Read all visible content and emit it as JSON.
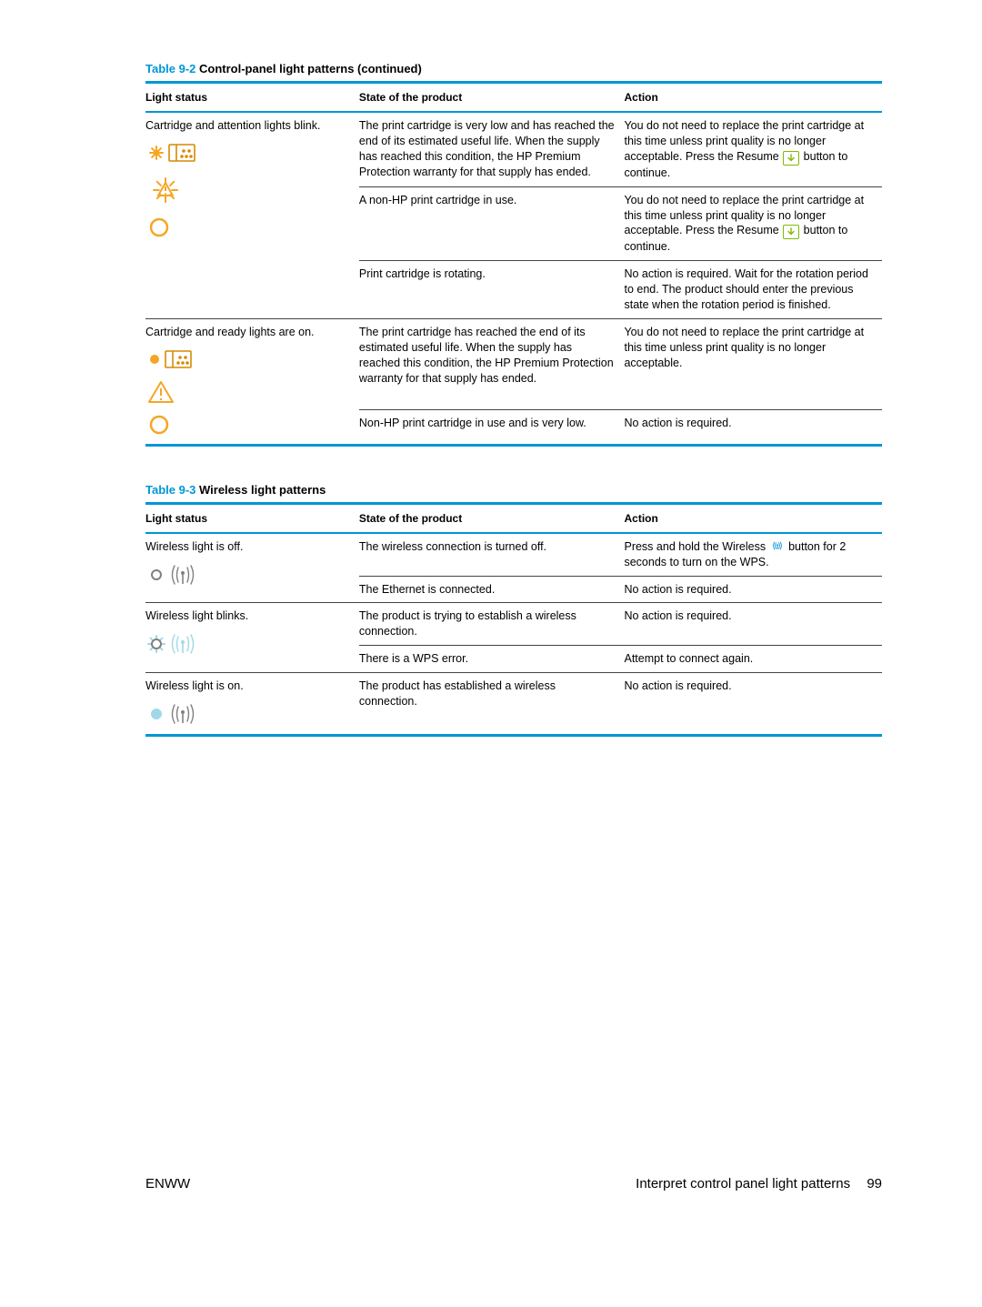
{
  "colors": {
    "hp_blue": "#0096d6",
    "amber": "#f5a623",
    "green": "#7fba00",
    "gray": "#808080",
    "light_blue": "#9fd9e8",
    "dark_amber": "#d68a00",
    "text": "#000000",
    "rule": "#444444"
  },
  "table92": {
    "title_prefix": "Table 9-2",
    "title_rest": "  Control-panel light patterns (continued)",
    "headers": {
      "light": "Light status",
      "state": "State of the product",
      "action": "Action"
    },
    "group1": {
      "light_label": "Cartridge and attention lights blink.",
      "rows": [
        {
          "state": "The print cartridge is very low and has reached the end of its estimated useful life. When the supply has reached this condition, the HP Premium Protection warranty for that supply has ended.",
          "action_pre": "You do not need to replace the print cartridge at this time unless print quality is no longer acceptable. Press the Resume ",
          "action_post": " button to continue.",
          "has_resume_icon": true
        },
        {
          "state": "A non-HP print cartridge in use.",
          "action_pre": "You do not need to replace the print cartridge at this time unless print quality is no longer acceptable. Press the Resume ",
          "action_post": " button to continue.",
          "has_resume_icon": true
        },
        {
          "state": "Print cartridge is rotating.",
          "action_pre": "No action is required. Wait for the rotation period to end. The product should enter the previous state when the rotation period is finished.",
          "action_post": "",
          "has_resume_icon": false
        }
      ]
    },
    "group2": {
      "light_label": "Cartridge and ready lights are on.",
      "rows": [
        {
          "state": "The print cartridge has reached the end of its estimated useful life. When the supply has reached this condition, the HP Premium Protection warranty for that supply has ended.",
          "action_pre": "You do not need to replace the print cartridge at this time unless print quality is no longer acceptable.",
          "action_post": "",
          "has_resume_icon": false
        },
        {
          "state": "Non-HP print cartridge in use and is very low.",
          "action_pre": "No action is required.",
          "action_post": "",
          "has_resume_icon": false
        }
      ]
    }
  },
  "table93": {
    "title_prefix": "Table 9-3",
    "title_rest": "  Wireless light patterns",
    "headers": {
      "light": "Light status",
      "state": "State of the product",
      "action": "Action"
    },
    "groups": [
      {
        "light_label": "Wireless light is off.",
        "icon": "wifi_off",
        "rows": [
          {
            "state": "The wireless connection is turned off.",
            "action_pre": "Press and hold the Wireless ",
            "action_post": " button for 2 seconds to turn on the WPS.",
            "has_wifi_icon": true
          },
          {
            "state": "The Ethernet is connected.",
            "action_pre": "No action is required.",
            "action_post": "",
            "has_wifi_icon": false
          }
        ]
      },
      {
        "light_label": "Wireless light blinks.",
        "icon": "wifi_blink",
        "rows": [
          {
            "state": "The product is trying to establish a wireless connection.",
            "action_pre": "No action is required.",
            "action_post": "",
            "has_wifi_icon": false
          },
          {
            "state": "There is a WPS error.",
            "action_pre": "Attempt to connect again.",
            "action_post": "",
            "has_wifi_icon": false
          }
        ]
      },
      {
        "light_label": "Wireless light is on.",
        "icon": "wifi_on",
        "rows": [
          {
            "state": "The product has established a wireless connection.",
            "action_pre": "No action is required.",
            "action_post": "",
            "has_wifi_icon": false
          }
        ]
      }
    ]
  },
  "footer": {
    "left": "ENWW",
    "right_text": "Interpret control panel light patterns",
    "page": "99"
  }
}
